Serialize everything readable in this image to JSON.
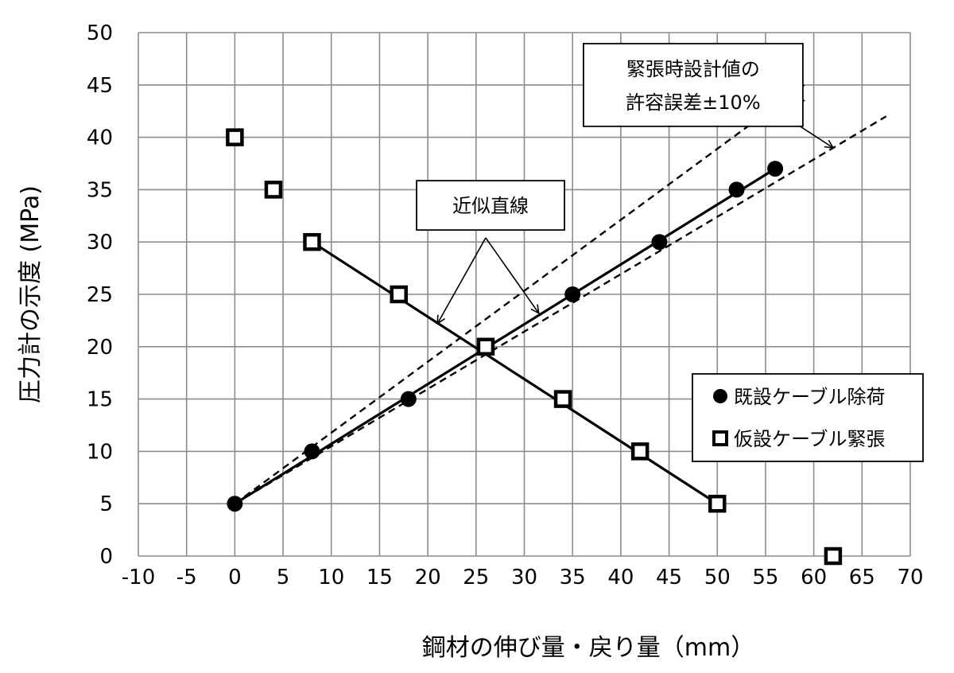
{
  "chart_data": {
    "type": "scatter",
    "title": "",
    "xlabel": "鋼材の伸び量・戻り量（mm）",
    "ylabel": "圧力計の示度 (MPa)",
    "xlim": [
      -10,
      70
    ],
    "ylim": [
      0,
      50
    ],
    "x_ticks": [
      -10,
      -5,
      0,
      5,
      10,
      15,
      20,
      25,
      30,
      35,
      40,
      45,
      50,
      55,
      60,
      65,
      70
    ],
    "y_ticks": [
      0,
      5,
      10,
      15,
      20,
      25,
      30,
      35,
      40,
      45,
      50
    ],
    "grid": true,
    "legend_position": "right-middle",
    "series": [
      {
        "name": "既設ケーブル除荷",
        "marker": "filled-circle",
        "color": "#000000",
        "points": [
          [
            0,
            5
          ],
          [
            8,
            10
          ],
          [
            18,
            15
          ],
          [
            26,
            20
          ],
          [
            35,
            25
          ],
          [
            44,
            30
          ],
          [
            52,
            35
          ],
          [
            56,
            37
          ]
        ]
      },
      {
        "name": "仮設ケーブル緊張",
        "marker": "open-square",
        "color": "#000000",
        "points": [
          [
            0,
            40
          ],
          [
            4,
            35
          ],
          [
            8,
            30
          ],
          [
            17,
            25
          ],
          [
            26,
            20
          ],
          [
            34,
            15
          ],
          [
            42,
            10
          ],
          [
            50,
            5
          ],
          [
            62,
            0
          ]
        ]
      }
    ],
    "fit_lines": [
      {
        "style": "solid",
        "from": [
          0,
          5
        ],
        "to": [
          56,
          37
        ]
      },
      {
        "style": "solid",
        "from": [
          8,
          30
        ],
        "to": [
          50,
          5
        ]
      }
    ],
    "tolerance_lines": [
      {
        "style": "dashed",
        "from": [
          0,
          5
        ],
        "to": [
          59,
          45
        ]
      },
      {
        "style": "dashed",
        "from": [
          0,
          5
        ],
        "to": [
          67.5,
          42
        ]
      }
    ],
    "annotations": [
      {
        "text": "近似直線",
        "box_center": [
          26.5,
          33.5
        ],
        "arrow_origin": [
          26,
          30.4
        ],
        "targets": [
          [
            21,
            22.2
          ],
          [
            31.5,
            23.2
          ]
        ]
      },
      {
        "text_lines": [
          "緊張時設計値の",
          "許容誤差±10%"
        ],
        "box_center": [
          47.5,
          45
        ],
        "arrow_origin": [
          53,
          44.4
        ],
        "targets": [
          [
            59,
            43.5
          ],
          [
            62,
            39
          ]
        ]
      }
    ]
  }
}
